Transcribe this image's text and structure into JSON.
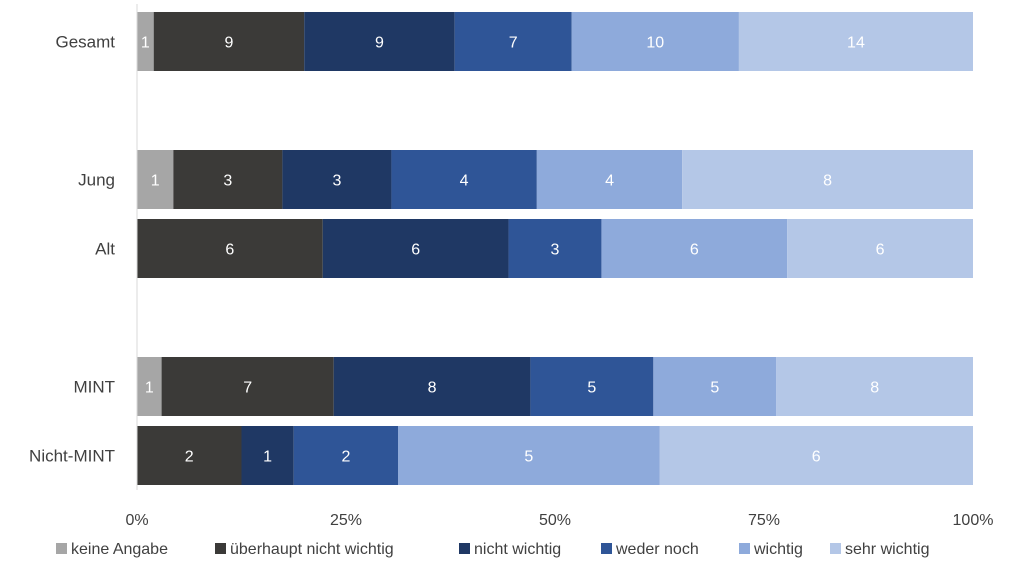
{
  "chart_data": {
    "type": "bar",
    "orientation": "horizontal",
    "stacked": "percent",
    "categories": [
      "Gesamt",
      "Jung",
      "Alt",
      "MINT",
      "Nicht-MINT"
    ],
    "series": [
      {
        "name": "keine Angabe",
        "color": "#a6a6a6",
        "label_color": "#ffffff",
        "values": [
          1,
          1,
          0,
          1,
          0
        ]
      },
      {
        "name": "überhaupt nicht wichtig",
        "color": "#3b3a38",
        "label_color": "#ffffff",
        "values": [
          9,
          3,
          6,
          7,
          2
        ]
      },
      {
        "name": "nicht wichtig",
        "color": "#1f3864",
        "label_color": "#ffffff",
        "values": [
          9,
          3,
          6,
          8,
          1
        ]
      },
      {
        "name": "weder noch",
        "color": "#2f5597",
        "label_color": "#ffffff",
        "values": [
          7,
          4,
          3,
          5,
          2
        ]
      },
      {
        "name": "wichtig",
        "color": "#8eaadb",
        "label_color": "#ffffff",
        "values": [
          10,
          4,
          6,
          5,
          5
        ]
      },
      {
        "name": "sehr wichtig",
        "color": "#b4c7e7",
        "label_color": "#ffffff",
        "values": [
          14,
          8,
          6,
          8,
          6
        ]
      }
    ],
    "x_ticks": [
      "0%",
      "25%",
      "50%",
      "75%",
      "100%"
    ],
    "xlim": [
      0,
      100
    ],
    "grid": false,
    "legend_position": "bottom"
  }
}
